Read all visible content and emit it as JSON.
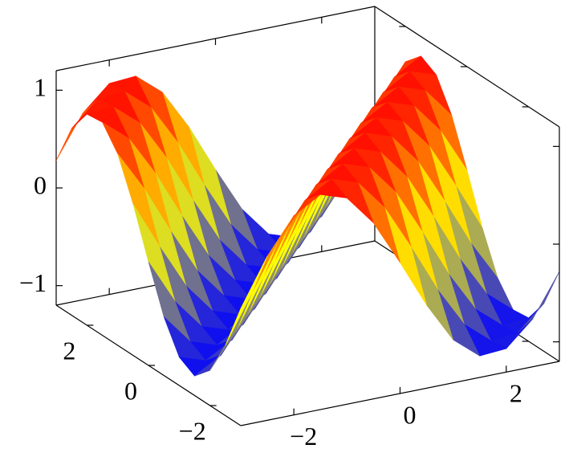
{
  "chart_data": {
    "type": "surface",
    "x": [
      -3,
      -2.5,
      -2,
      -1.5,
      -1,
      -0.5,
      0,
      0.5,
      1,
      1.5,
      2,
      2.5,
      3
    ],
    "y": [
      -3,
      -2.5,
      -2,
      -1.5,
      -1,
      -0.5,
      0,
      0.5,
      1,
      1.5,
      2,
      2.5,
      3
    ],
    "z": [
      [
        0,
        0.48,
        0.84,
        1,
        0.91,
        0.6,
        0.14,
        -0.35,
        -0.76,
        -0.98,
        -0.96,
        -0.71,
        -0.28
      ],
      [
        -0.48,
        0,
        0.48,
        0.84,
        1,
        0.91,
        0.6,
        0.14,
        -0.35,
        -0.76,
        -0.98,
        -0.96,
        -0.71
      ],
      [
        -0.84,
        -0.48,
        0,
        0.48,
        0.84,
        1,
        0.91,
        0.6,
        0.14,
        -0.35,
        -0.76,
        -0.98,
        -0.96
      ],
      [
        -1,
        -0.84,
        -0.48,
        0,
        0.48,
        0.84,
        1,
        0.91,
        0.6,
        0.14,
        -0.35,
        -0.76,
        -0.98
      ],
      [
        -0.91,
        -1,
        -0.84,
        -0.48,
        0,
        0.48,
        0.84,
        1,
        0.91,
        0.6,
        0.14,
        -0.35,
        -0.76
      ],
      [
        -0.6,
        -0.91,
        -1,
        -0.84,
        -0.48,
        0,
        0.48,
        0.84,
        1,
        0.91,
        0.6,
        0.14,
        -0.35
      ],
      [
        -0.14,
        -0.6,
        -0.91,
        -1,
        -0.84,
        -0.48,
        0,
        0.48,
        0.84,
        1,
        0.91,
        0.6,
        0.14
      ],
      [
        0.35,
        -0.14,
        -0.6,
        -0.91,
        -1,
        -0.84,
        -0.48,
        0,
        0.48,
        0.84,
        1,
        0.91,
        0.6
      ],
      [
        0.76,
        0.35,
        -0.14,
        -0.6,
        -0.91,
        -1,
        -0.84,
        -0.48,
        0,
        0.48,
        0.84,
        1,
        0.91
      ],
      [
        0.98,
        0.76,
        0.35,
        -0.14,
        -0.6,
        -0.91,
        -1,
        -0.84,
        -0.48,
        0,
        0.48,
        0.84,
        1
      ],
      [
        0.96,
        0.98,
        0.76,
        0.35,
        -0.14,
        -0.6,
        -0.91,
        -1,
        -0.84,
        -0.48,
        0,
        0.48,
        0.84
      ],
      [
        0.71,
        0.96,
        0.98,
        0.76,
        0.35,
        -0.14,
        -0.6,
        -0.91,
        -1,
        -0.84,
        -0.48,
        0,
        0.48
      ],
      [
        0.28,
        0.71,
        0.96,
        0.98,
        0.76,
        0.35,
        -0.14,
        -0.6,
        -0.91,
        -1,
        -0.84,
        -0.48,
        0
      ]
    ],
    "xlim": [
      -3,
      3
    ],
    "ylim": [
      -3,
      3
    ],
    "zlim": [
      -1.2,
      1.2
    ],
    "xticks": [
      {
        "value": -2,
        "label": "−2"
      },
      0,
      2
    ],
    "yticks": [
      {
        "value": -2,
        "label": "−2"
      },
      0,
      2
    ],
    "zticks": [
      {
        "value": -1,
        "label": "−1"
      },
      0,
      1
    ],
    "colormap": [
      "#0000ff",
      "#ffff00",
      "#ff0000"
    ],
    "grid": false
  }
}
